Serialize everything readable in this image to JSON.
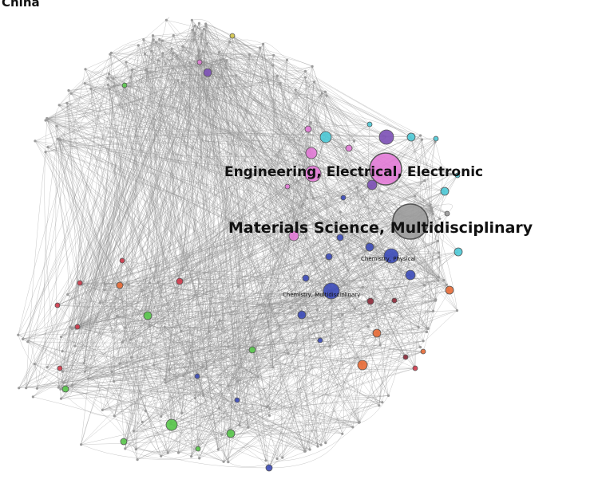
{
  "title": "China",
  "diagram": {
    "type": "network",
    "edge_color": "#8c8c8c",
    "node_stroke": "#555555",
    "palette": {
      "gray": "#9a9a9a",
      "pink": "#e27ad6",
      "purple": "#7b4fb5",
      "cyan": "#4cc9d6",
      "blue": "#3b4ab8",
      "red": "#d23a4b",
      "orange": "#e86a35",
      "green": "#58c64a",
      "darkred": "#8e2a3a",
      "yellow": "#d6c84a"
    },
    "labels": {
      "engineering": "Engineering, Electrical, Electronic",
      "materials": "Materials Science, Multidisciplinary",
      "chem_physical": "Chemistry, Physical",
      "chem_multi": "Chemistry, Multidisciplinary"
    }
  }
}
